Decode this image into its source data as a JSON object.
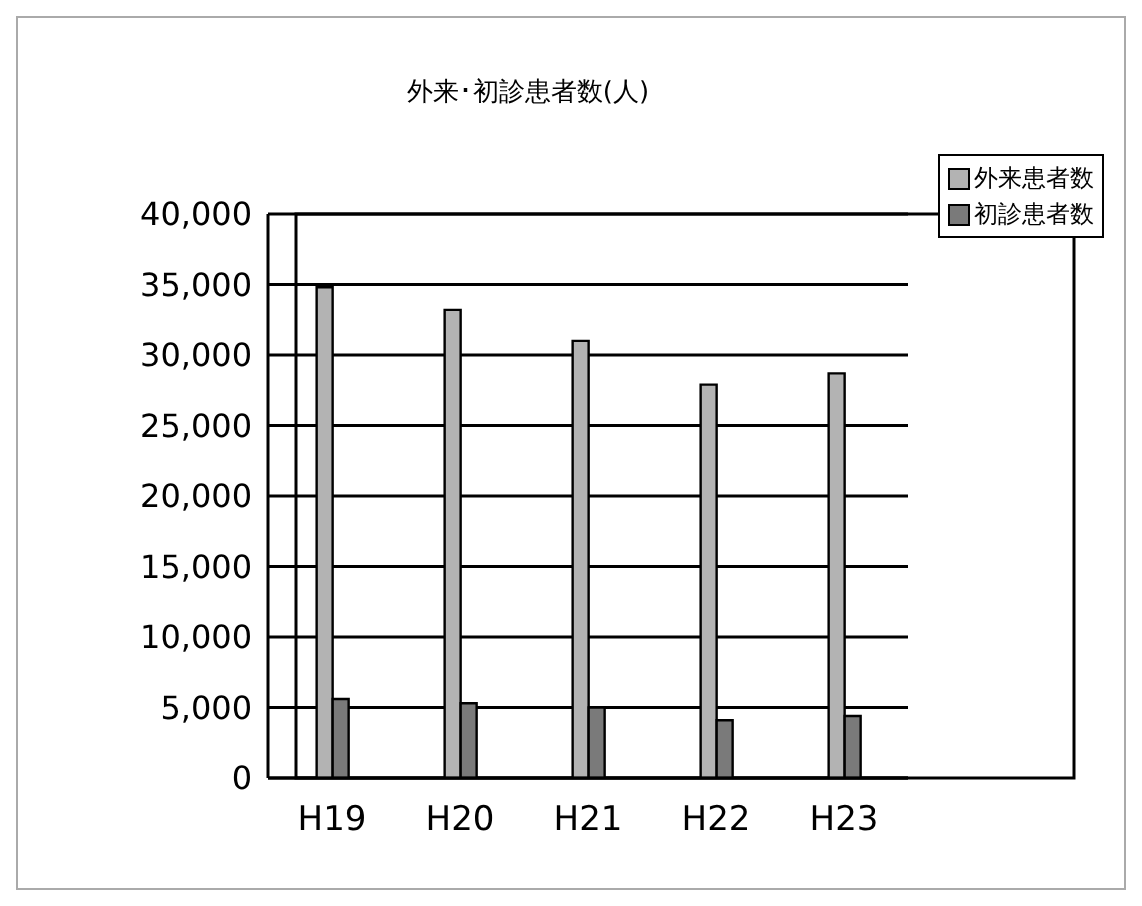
{
  "chart_data": {
    "type": "bar",
    "title": "外来･初診患者数(人)",
    "categories": [
      "H19",
      "H20",
      "H21",
      "H22",
      "H23"
    ],
    "series": [
      {
        "name": "外来患者数",
        "color": "#b3b3b3",
        "values": [
          34800,
          33200,
          31000,
          27900,
          28700
        ]
      },
      {
        "name": "初診患者数",
        "color": "#7a7a7a",
        "values": [
          5600,
          5300,
          5000,
          4100,
          4400
        ]
      }
    ],
    "ylim": [
      0,
      40000
    ],
    "yticks": [
      {
        "value": 0,
        "label": "0"
      },
      {
        "value": 5000,
        "label": "5,000"
      },
      {
        "value": 10000,
        "label": "10,000"
      },
      {
        "value": 15000,
        "label": "15,000"
      },
      {
        "value": 20000,
        "label": "20,000"
      },
      {
        "value": 25000,
        "label": "25,000"
      },
      {
        "value": 30000,
        "label": "30,000"
      },
      {
        "value": 35000,
        "label": "35,000"
      },
      {
        "value": 40000,
        "label": "40,000"
      }
    ],
    "grid": "y",
    "legend": "top right"
  }
}
